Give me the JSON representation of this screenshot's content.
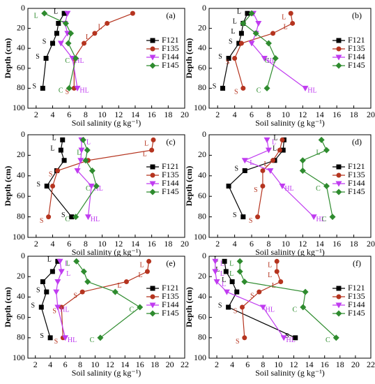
{
  "chart_data": [
    {
      "type": "line",
      "panel": "(a)",
      "xlabel": "Soil salinity (g kg⁻¹)",
      "ylabel": "Depth (cm)",
      "depth": [
        5,
        15,
        25,
        35,
        50,
        80
      ],
      "xlim": [
        1,
        20
      ],
      "xticks": [
        2,
        4,
        6,
        8,
        10,
        12,
        14,
        16,
        18,
        20
      ],
      "ylim": [
        100,
        0
      ],
      "yticks": [
        0,
        20,
        40,
        60,
        80,
        100
      ],
      "series": [
        {
          "name": "F121",
          "color": "#000000",
          "values": [
            5.4,
            4.7,
            4.5,
            4.0,
            3.2,
            2.8
          ],
          "point_labels": [
            "L",
            null,
            null,
            "S",
            "S",
            "S"
          ]
        },
        {
          "name": "F135",
          "color": "#b5341f",
          "values": [
            13.7,
            10.6,
            9.1,
            7.8,
            6.6,
            6.6
          ],
          "point_labels": [
            null,
            "L",
            "L",
            null,
            null,
            "S"
          ]
        },
        {
          "name": "F144",
          "color": "#c03cf0",
          "values": [
            5.8,
            5.5,
            5.8,
            5.0,
            6.4,
            7.0
          ],
          "point_labels": [
            null,
            null,
            null,
            null,
            "HL",
            "HL"
          ]
        },
        {
          "name": "F145",
          "color": "#2e8b2e",
          "values": [
            3.0,
            5.6,
            6.2,
            5.9,
            6.8,
            6.0
          ],
          "point_labels": [
            "L",
            null,
            null,
            null,
            "C",
            "C"
          ]
        }
      ]
    },
    {
      "type": "line",
      "panel": "(b)",
      "xlabel": "Soil salinity (g kg⁻¹)",
      "ylabel": "Depth (cm)",
      "depth": [
        5,
        15,
        25,
        35,
        50,
        80
      ],
      "xlim": [
        1,
        20
      ],
      "xticks": [
        2,
        4,
        6,
        8,
        10,
        12,
        14,
        16,
        18,
        20
      ],
      "ylim": [
        100,
        0
      ],
      "yticks": [
        0,
        20,
        40,
        60,
        80,
        100
      ],
      "series": [
        {
          "name": "F121",
          "color": "#000000",
          "values": [
            5.5,
            5.0,
            4.8,
            4.5,
            3.3,
            2.6
          ],
          "point_labels": [
            "L",
            "L",
            "L",
            "S",
            "S",
            "S"
          ]
        },
        {
          "name": "F135",
          "color": "#b5341f",
          "values": [
            10.6,
            10.8,
            8.5,
            4.8,
            4.0,
            5.0
          ],
          "point_labels": [
            "L",
            "L",
            null,
            null,
            "S",
            "S"
          ]
        },
        {
          "name": "F144",
          "color": "#c03cf0",
          "values": [
            6.2,
            6.8,
            6.5,
            6.0,
            7.5,
            12.3
          ],
          "point_labels": [
            null,
            null,
            null,
            null,
            "HL",
            "HL"
          ]
        },
        {
          "name": "F145",
          "color": "#2e8b2e",
          "values": [
            6.0,
            5.0,
            6.5,
            8.0,
            8.8,
            7.8
          ],
          "point_labels": [
            null,
            null,
            null,
            null,
            "C",
            "C"
          ]
        }
      ]
    },
    {
      "type": "line",
      "panel": "(c)",
      "xlabel": "Soil salinity (g kg⁻¹)",
      "ylabel": "Depth (cm)",
      "depth": [
        5,
        15,
        25,
        35,
        50,
        80
      ],
      "xlim": [
        1,
        20
      ],
      "xticks": [
        2,
        4,
        6,
        8,
        10,
        12,
        14,
        16,
        18,
        20
      ],
      "ylim": [
        100,
        0
      ],
      "yticks": [
        0,
        20,
        40,
        60,
        80,
        100
      ],
      "series": [
        {
          "name": "F121",
          "color": "#000000",
          "values": [
            5.2,
            5.0,
            5.4,
            4.5,
            3.3,
            6.3
          ],
          "point_labels": [
            "L",
            "L",
            null,
            null,
            "S",
            "S"
          ]
        },
        {
          "name": "F135",
          "color": "#b5341f",
          "values": [
            16.2,
            16.0,
            8.3,
            4.6,
            4.0,
            3.5
          ],
          "point_labels": [
            "L",
            "L",
            null,
            "S",
            null,
            "S"
          ]
        },
        {
          "name": "F144",
          "color": "#c03cf0",
          "values": [
            7.5,
            7.5,
            7.4,
            7.0,
            8.7,
            8.3
          ],
          "point_labels": [
            "L",
            null,
            null,
            null,
            "HL",
            "HL"
          ]
        },
        {
          "name": "F145",
          "color": "#2e8b2e",
          "values": [
            7.7,
            8.2,
            8.0,
            8.8,
            9.3,
            6.8
          ],
          "point_labels": [
            null,
            "L",
            null,
            null,
            "C",
            "C"
          ]
        }
      ]
    },
    {
      "type": "line",
      "panel": "(d)",
      "xlabel": "Soil salinity (g kg⁻¹)",
      "ylabel": "Depth (cm)",
      "depth": [
        5,
        15,
        25,
        35,
        50,
        80
      ],
      "xlim": [
        1,
        20
      ],
      "xticks": [
        2,
        4,
        6,
        8,
        10,
        12,
        14,
        16,
        18,
        20
      ],
      "ylim": [
        100,
        0
      ],
      "yticks": [
        0,
        20,
        40,
        60,
        80,
        100
      ],
      "series": [
        {
          "name": "F121",
          "color": "#000000",
          "values": [
            9.8,
            9.7,
            8.7,
            5.2,
            3.3,
            5.0
          ],
          "point_labels": [
            "L",
            "L",
            null,
            "S",
            null,
            "S"
          ]
        },
        {
          "name": "F135",
          "color": "#b5341f",
          "values": [
            9.6,
            9.3,
            8.5,
            7.3,
            7.3,
            6.7
          ],
          "point_labels": [
            null,
            null,
            "L",
            null,
            "S",
            "S"
          ]
        },
        {
          "name": "F144",
          "color": "#c03cf0",
          "values": [
            7.8,
            8.0,
            5.2,
            8.2,
            9.6,
            13.3
          ],
          "point_labels": [
            "L",
            null,
            "L",
            null,
            "HL",
            "HL"
          ]
        },
        {
          "name": "F145",
          "color": "#2e8b2e",
          "values": [
            14.2,
            14.8,
            12.0,
            12.0,
            14.8,
            15.5
          ],
          "point_labels": [
            null,
            "L",
            null,
            null,
            "C",
            "C"
          ]
        }
      ]
    },
    {
      "type": "line",
      "panel": "(e)",
      "xlabel": "Soil salinity (g kg⁻¹)",
      "ylabel": "Depth (cm)",
      "depth": [
        5,
        15,
        25,
        35,
        50,
        80
      ],
      "xlim": [
        1,
        22
      ],
      "xticks": [
        2,
        4,
        6,
        8,
        10,
        12,
        14,
        16,
        18,
        20,
        22
      ],
      "ylim": [
        100,
        0
      ],
      "yticks": [
        0,
        20,
        40,
        60,
        80,
        100
      ],
      "series": [
        {
          "name": "F121",
          "color": "#000000",
          "values": [
            5.0,
            4.3,
            3.0,
            3.5,
            2.8,
            4.0
          ],
          "point_labels": [
            "L",
            null,
            null,
            "S",
            "S",
            "S"
          ]
        },
        {
          "name": "F135",
          "color": "#b5341f",
          "values": [
            17.2,
            17.0,
            14.2,
            8.3,
            5.5,
            5.7
          ],
          "point_labels": [
            "L",
            "L",
            "L",
            "S",
            "S",
            "S"
          ]
        },
        {
          "name": "F144",
          "color": "#c03cf0",
          "values": [
            5.3,
            5.5,
            5.0,
            4.8,
            5.0,
            6.0
          ],
          "point_labels": [
            "L",
            "L",
            null,
            null,
            "HL",
            "HL"
          ]
        },
        {
          "name": "F145",
          "color": "#2e8b2e",
          "values": [
            7.5,
            8.5,
            9.0,
            12.7,
            16.0,
            10.7
          ],
          "point_labels": [
            "L",
            null,
            null,
            null,
            "C",
            "C"
          ]
        }
      ]
    },
    {
      "type": "line",
      "panel": "(f)",
      "xlabel": "Soil salinity (g kg⁻¹)",
      "ylabel": "Depth (cm)",
      "depth": [
        5,
        15,
        25,
        35,
        50,
        80
      ],
      "xlim": [
        1,
        22
      ],
      "xticks": [
        2,
        4,
        6,
        8,
        10,
        12,
        14,
        16,
        18,
        20,
        22
      ],
      "ylim": [
        100,
        0
      ],
      "yticks": [
        0,
        20,
        40,
        60,
        80,
        100
      ],
      "series": [
        {
          "name": "F121",
          "color": "#000000",
          "values": [
            3.0,
            3.2,
            4.0,
            4.6,
            3.5,
            12.2
          ],
          "point_labels": [
            "L",
            "L",
            "L",
            null,
            "S",
            "S"
          ]
        },
        {
          "name": "F135",
          "color": "#b5341f",
          "values": [
            9.8,
            9.8,
            10.3,
            7.5,
            5.3,
            5.6
          ],
          "point_labels": [
            "L",
            "L",
            "L",
            "S",
            "S",
            "S"
          ]
        },
        {
          "name": "F144",
          "color": "#c03cf0",
          "values": [
            1.8,
            1.8,
            2.0,
            3.3,
            8.0,
            10.7
          ],
          "point_labels": [
            "L",
            "L",
            "L",
            null,
            "HL",
            "HL"
          ]
        },
        {
          "name": "F145",
          "color": "#2e8b2e",
          "values": [
            5.0,
            5.0,
            5.6,
            13.5,
            13.2,
            17.5
          ],
          "point_labels": [
            "L",
            "L",
            null,
            null,
            "C",
            "C"
          ]
        }
      ]
    }
  ]
}
